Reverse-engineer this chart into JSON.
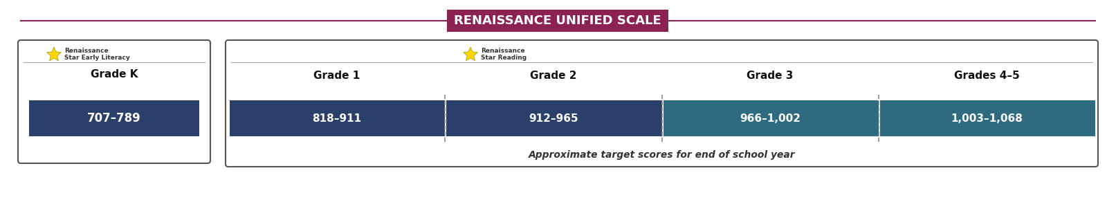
{
  "title": "RENAISSANCE UNIFIED SCALE",
  "title_bg": "#8B2252",
  "title_color": "#FFFFFF",
  "title_fontsize": 13,
  "header_line_color": "#8B2252",
  "background_color": "#FFFFFF",
  "grade_k_label": "Grade K",
  "grade_k_range": "707–789",
  "grade_k_bar_color": "#2B3F6B",
  "star_early_label1": "Renaissance",
  "star_early_label2": "Star Early Literacy",
  "star_reading_label1": "Renaissance",
  "star_reading_label2": "Star Reading",
  "grades": [
    "Grade 1",
    "Grade 2",
    "Grade 3",
    "Grades 4–5"
  ],
  "ranges": [
    "818–911",
    "912–965",
    "966–1,002",
    "1,003–1,068"
  ],
  "bar_colors": [
    "#2B3F6B",
    "#2B3F6B",
    "#2E6B80",
    "#2E6B80"
  ],
  "footnote": "Approximate target scores for end of school year",
  "box_border_color": "#555555",
  "tick_color": "#555555"
}
